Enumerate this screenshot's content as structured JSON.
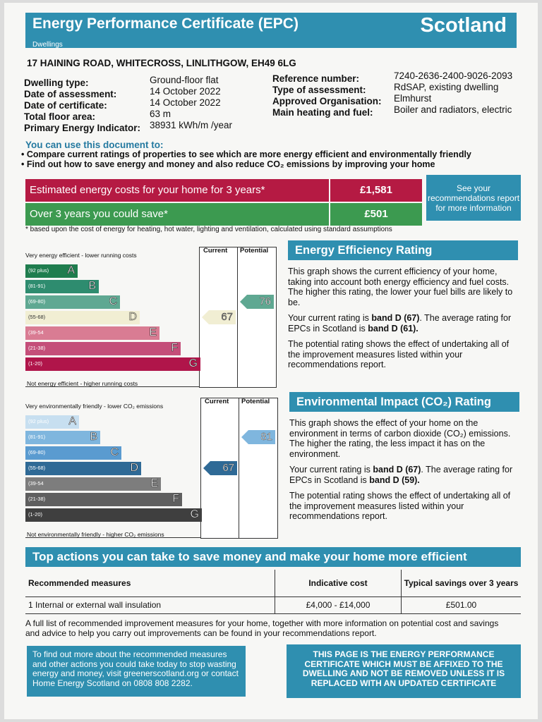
{
  "header": {
    "title": "Energy Performance Certificate (EPC)",
    "subtitle": "Dwellings",
    "region": "Scotland"
  },
  "address": "17 HAINING ROAD, WHITECROSS, LINLITHGOW, EH49 6LG",
  "details_left": [
    {
      "label": "Dwelling type:",
      "value": "Ground-floor flat"
    },
    {
      "label": "Date of assessment:",
      "value": "14 October 2022"
    },
    {
      "label": "Date of certificate:",
      "value": "14 October 2022"
    },
    {
      "label": "Total floor area:",
      "value": "63 m"
    },
    {
      "label": "Primary Energy Indicator:",
      "value": "38931 kWh/m /year"
    }
  ],
  "details_right": [
    {
      "label": "Reference number:",
      "value": "7240-2636-2400-9026-2093"
    },
    {
      "label": "Type of assessment:",
      "value": "RdSAP, existing dwelling"
    },
    {
      "label": "Approved Organisation:",
      "value": "Elmhurst"
    },
    {
      "label": "Main heating and fuel:",
      "value": "Boiler and radiators, electric"
    }
  ],
  "use": {
    "title": "You can use this document to:",
    "bullets": [
      "Compare current ratings of properties to see which are more energy efficient and environmentally friendly",
      "Find out how to save energy and money and also reduce CO₂ emissions by improving your home"
    ]
  },
  "costs": {
    "row1_label": "Estimated energy costs for your home for 3 years*",
    "row1_value": "£1,581",
    "row2_label": "Over 3 years you could save*",
    "row2_value": "£501",
    "see_text": "See your recommendations report for more information",
    "note": "* based upon the cost of energy for heating, hot water, lighting and ventilation, calculated using standard assumptions"
  },
  "eer": {
    "col_current": "Current",
    "col_potential": "Potential",
    "top_label": "Very energy efficient - lower running costs",
    "bottom_label": "Not energy efficient - higher running costs",
    "bands": [
      {
        "range": "(92 plus)",
        "letter": "A",
        "color": "#1f7d4e"
      },
      {
        "range": "(81-91)",
        "letter": "B",
        "color": "#2e8c6f"
      },
      {
        "range": "(69-80)",
        "letter": "C",
        "color": "#5fa892"
      },
      {
        "range": "(55-68)",
        "letter": "D",
        "color": "#f1eed3"
      },
      {
        "range": "(39-54",
        "letter": "E",
        "color": "#d97c93"
      },
      {
        "range": "(21-38)",
        "letter": "F",
        "color": "#c44e79"
      },
      {
        "range": "(1-20)",
        "letter": "G",
        "color": "#b0154a"
      }
    ],
    "current": "67",
    "potential": "76",
    "title": "Energy Efficiency Rating",
    "p1": "This graph shows the current efficiency of your home, taking into account both energy efficiency and fuel costs. The higher this rating, the lower your fuel bills are likely to be.",
    "p2a": "Your current rating is ",
    "p2b": "band D (67)",
    "p2c": ". The average rating for EPCs in Scotland is ",
    "p2d": "band D (61).",
    "p3": "The potential rating shows the effect of undertaking all of the improvement measures listed within your recommendations report."
  },
  "eir": {
    "col_current": "Current",
    "col_potential": "Potential",
    "top_label": "Very environmentally friendly - lower CO₂ emissions",
    "bottom_label": "Not environmentally friendly - higher CO₂ emissions",
    "bands": [
      {
        "range": "(92 plus)",
        "letter": "A",
        "color": "#c7dff0"
      },
      {
        "range": "(81-91)",
        "letter": "B",
        "color": "#7fb6de"
      },
      {
        "range": "(69-80)",
        "letter": "C",
        "color": "#5a9bd0"
      },
      {
        "range": "(55-68)",
        "letter": "D",
        "color": "#2f6a96"
      },
      {
        "range": "(39-54",
        "letter": "E",
        "color": "#7d7d7d"
      },
      {
        "range": "(21-38)",
        "letter": "F",
        "color": "#5f5f5f"
      },
      {
        "range": "(1-20)",
        "letter": "G",
        "color": "#3f3f3f"
      }
    ],
    "current": "67",
    "potential": "81",
    "title": "Environmental Impact (CO₂) Rating",
    "p1": "This graph shows the effect of your home on the environment in terms of carbon dioxide (CO₂) emissions. The higher the rating, the less impact it has on the environment.",
    "p2a": "Your current rating is ",
    "p2b": "band D (67)",
    "p2c": ". The average rating for EPCs in Scotland is ",
    "p2d": "band D (59).",
    "p3": "The potential rating shows the effect of undertaking all of the improvement measures listed within your recommendations report."
  },
  "actions": {
    "title": "Top actions you can take to save money and make your home more efficient",
    "headers": [
      "Recommended measures",
      "Indicative cost",
      "Typical savings over 3 years"
    ],
    "rows": [
      {
        "measure": "1 Internal or external wall insulation",
        "cost": "£4,000 - £14,000",
        "saving": "£501.00"
      }
    ],
    "note": "A full list of recommended improvement measures for your home, together with more information on potential cost and savings and advice to help you carry out improvements can be found in your recommendations report."
  },
  "footer": {
    "left": "To find out more about the recommended measures and other actions you could take today to stop wasting energy and money, visit greenerscotland.org or contact Home Energy Scotland on 0808 808 2282.",
    "right": "THIS PAGE IS THE ENERGY PERFORMANCE CERTIFICATE WHICH MUST BE AFFIXED TO THE DWELLING AND NOT BE REMOVED UNLESS IT IS REPLACED WITH AN UPDATED CERTIFICATE"
  }
}
